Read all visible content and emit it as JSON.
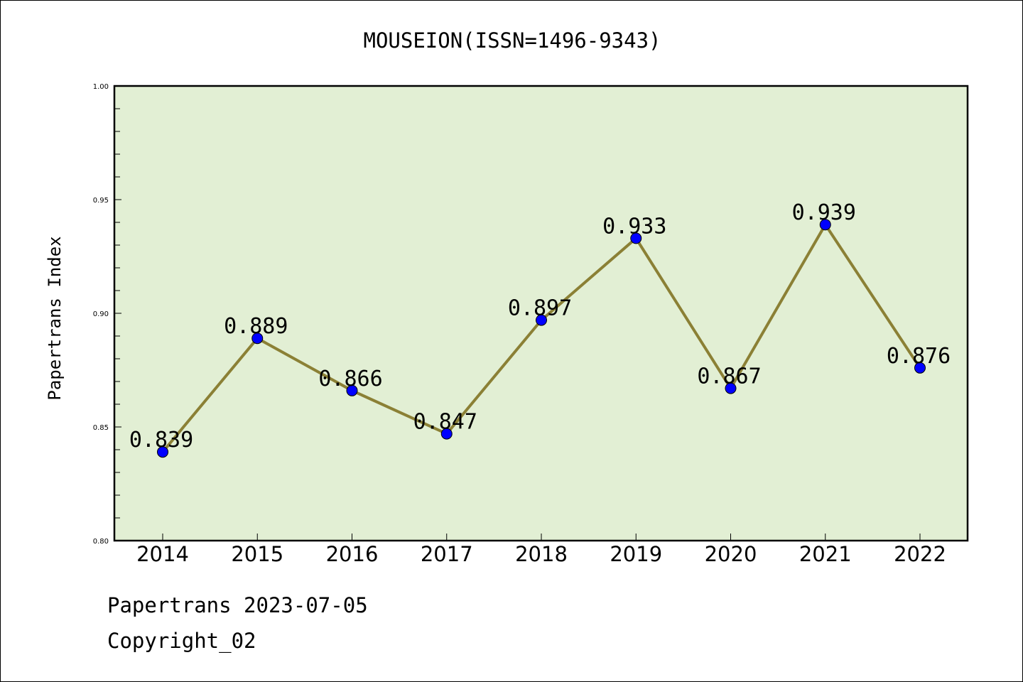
{
  "chart_data": {
    "type": "line",
    "title": "MOUSEION(ISSN=1496-9343)",
    "xlabel": "",
    "ylabel": "Papertrans Index",
    "categories": [
      "2014",
      "2015",
      "2016",
      "2017",
      "2018",
      "2019",
      "2020",
      "2021",
      "2022"
    ],
    "values": [
      0.839,
      0.889,
      0.866,
      0.847,
      0.897,
      0.933,
      0.867,
      0.939,
      0.876
    ],
    "data_labels": [
      "0.839",
      "0.889",
      "0.866",
      "0.847",
      "0.897",
      "0.933",
      "0.867",
      "0.939",
      "0.876"
    ],
    "ylim": [
      0.8,
      1.0
    ],
    "yticks": [
      0.8,
      0.85,
      0.9,
      0.95,
      1.0
    ],
    "ytick_labels": [
      "0.80",
      "0.85",
      "0.90",
      "0.95",
      "1.00"
    ],
    "grid": false,
    "legend": "none",
    "colors": {
      "plot_background": "#e2efd4",
      "line": "#8b8035",
      "marker": "#0000ff",
      "axes": "#000000"
    }
  },
  "footer": {
    "date_text": "Papertrans 2023-07-05",
    "copyright_text": "Copyright_02"
  }
}
